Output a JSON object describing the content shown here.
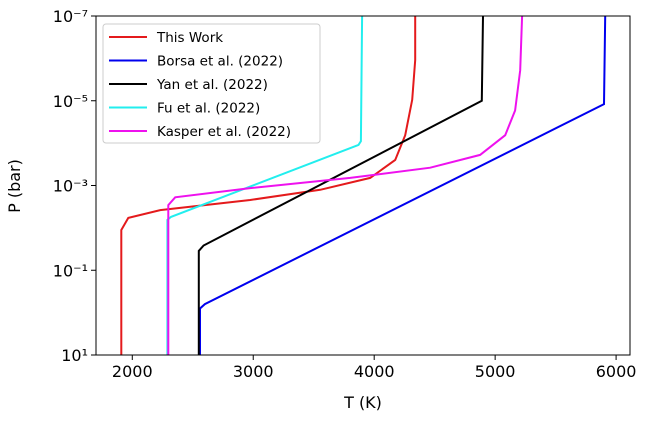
{
  "chart_data": {
    "type": "line",
    "xlabel": "T (K)",
    "ylabel": "P (bar)",
    "xlim": [
      1700,
      6115
    ],
    "xticks": [
      2000,
      3000,
      4000,
      5000,
      6000
    ],
    "ylim": [
      10,
      1e-07
    ],
    "yscale": "log",
    "yticks": [
      {
        "value": 10,
        "label": "10¹"
      },
      {
        "value": 0.1,
        "label": "10⁻¹"
      },
      {
        "value": 0.001,
        "label": "10⁻³"
      },
      {
        "value": 1e-05,
        "label": "10⁻⁵"
      },
      {
        "value": 1e-07,
        "label": "10⁻⁷"
      }
    ],
    "legend": "upper left",
    "series": [
      {
        "name": "This Work",
        "color": "#e41a1c",
        "x": [
          1909,
          1909,
          1967,
          2231,
          2975,
          3554,
          3967,
          4174,
          4256,
          4314,
          4339,
          4339
        ],
        "values": [
          10,
          0.0112,
          0.0058,
          0.0038,
          0.0022,
          0.00126,
          0.00066,
          0.00025,
          6.5e-05,
          9.5e-06,
          1.1e-06,
          1e-07
        ]
      },
      {
        "name": "Borsa et al. (2022)",
        "color": "#0000ee",
        "x": [
          2560,
          2560,
          2600,
          5900,
          5910
        ],
        "values": [
          10,
          0.8,
          0.63,
          1.2e-05,
          1e-07
        ]
      },
      {
        "name": "Yan et al. (2022)",
        "color": "#000000",
        "x": [
          2550,
          2550,
          2590,
          4890,
          4900
        ],
        "values": [
          10,
          0.035,
          0.026,
          1e-05,
          1e-07
        ]
      },
      {
        "name": "Fu et al. (2022)",
        "color": "#22eeee",
        "x": [
          2290,
          2290,
          2320,
          3870,
          3890,
          3900
        ],
        "values": [
          10,
          0.0065,
          0.0055,
          0.00011,
          9e-05,
          1e-07
        ]
      },
      {
        "name": "Kasper et al. (2022)",
        "color": "#ee11ee",
        "x": [
          2298,
          2298,
          2355,
          2975,
          3802,
          4463,
          4876,
          5083,
          5165,
          5207,
          5223
        ],
        "values": [
          10,
          0.0029,
          0.0019,
          0.00115,
          0.00066,
          0.00038,
          0.00019,
          6.5e-05,
          1.7e-05,
          1.9e-06,
          1e-07
        ]
      }
    ]
  }
}
